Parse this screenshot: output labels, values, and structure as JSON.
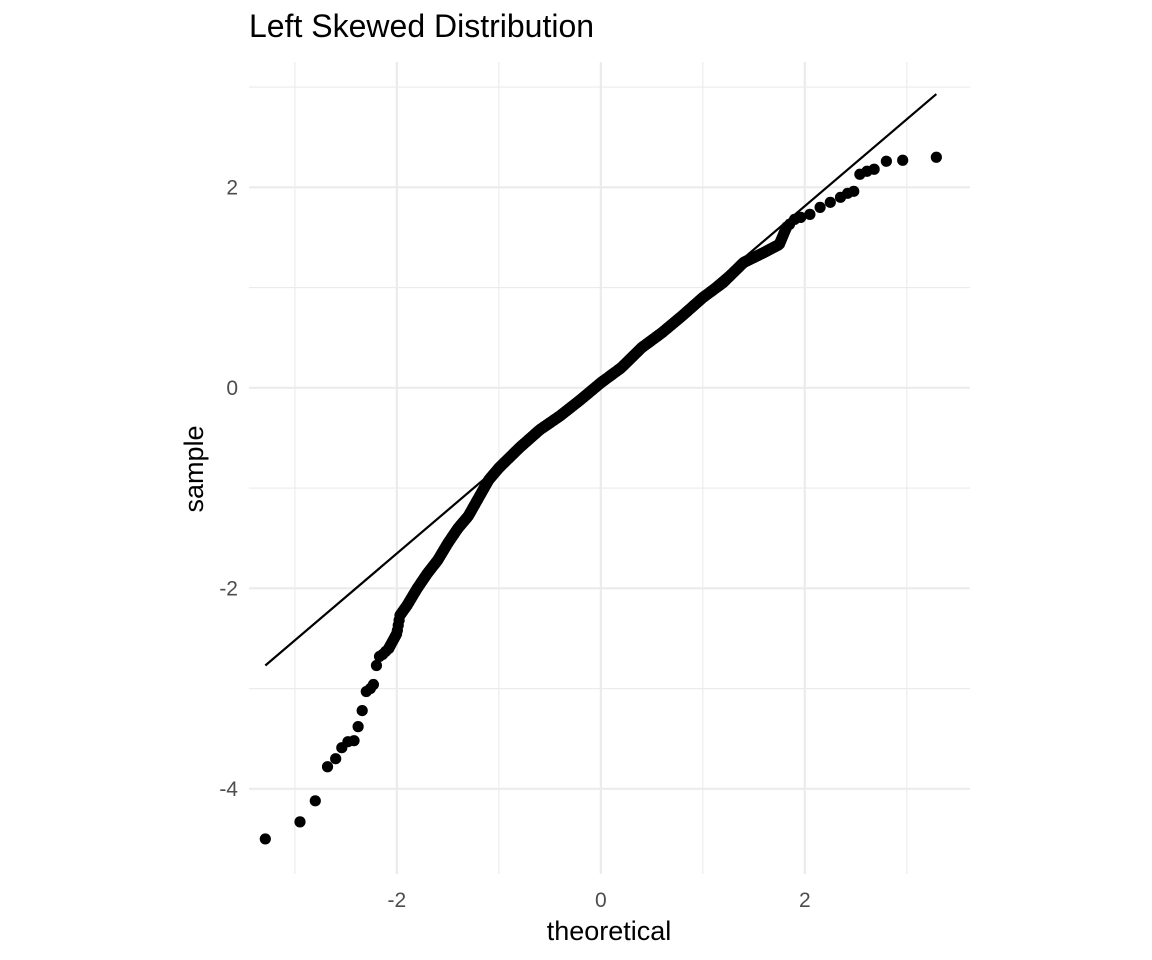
{
  "chart_data": {
    "type": "scatter",
    "title": "Left Skewed Distribution",
    "xlabel": "theoretical",
    "ylabel": "sample",
    "xlim": [
      -3.45,
      3.62
    ],
    "ylim": [
      -4.85,
      3.25
    ],
    "grid": true,
    "x_ticks": [
      -2,
      0,
      2
    ],
    "x_tick_labels": [
      "-2",
      "0",
      "2"
    ],
    "y_ticks": [
      -4,
      -2,
      0,
      2
    ],
    "y_tick_labels": [
      "-4",
      "-2",
      "0",
      "2"
    ],
    "reference_line": {
      "x": [
        -3.29,
        3.29
      ],
      "y": [
        -2.77,
        2.93
      ]
    },
    "point_color": "#000000",
    "line_color": "#000000",
    "grid_color": "#ebebeb",
    "tail_points": [
      [
        -3.29,
        -4.5
      ],
      [
        -2.95,
        -4.33
      ],
      [
        -2.8,
        -4.12
      ],
      [
        -2.68,
        -3.78
      ],
      [
        -2.6,
        -3.7
      ],
      [
        -2.54,
        -3.59
      ],
      [
        -2.48,
        -3.53
      ],
      [
        -2.42,
        -3.52
      ],
      [
        -2.38,
        -3.38
      ],
      [
        -2.34,
        -3.22
      ],
      [
        -2.3,
        -3.03
      ],
      [
        -2.26,
        -3.0
      ],
      [
        -2.23,
        -2.96
      ],
      [
        -2.2,
        -2.77
      ],
      [
        -2.17,
        -2.68
      ],
      [
        -2.14,
        -2.66
      ],
      [
        -2.11,
        -2.63
      ],
      [
        -2.08,
        -2.6
      ],
      [
        1.82,
        1.6
      ],
      [
        1.85,
        1.63
      ],
      [
        1.9,
        1.68
      ],
      [
        1.96,
        1.7
      ],
      [
        2.05,
        1.73
      ],
      [
        2.15,
        1.8
      ],
      [
        2.25,
        1.85
      ],
      [
        2.35,
        1.9
      ],
      [
        2.42,
        1.94
      ],
      [
        2.48,
        1.96
      ],
      [
        2.54,
        2.13
      ],
      [
        2.61,
        2.16
      ],
      [
        2.68,
        2.18
      ],
      [
        2.8,
        2.26
      ],
      [
        2.96,
        2.27
      ],
      [
        3.29,
        2.3
      ]
    ],
    "body_knots": [
      [
        -2.08,
        -2.6
      ],
      [
        -2.0,
        -2.45
      ],
      [
        -1.97,
        -2.27
      ],
      [
        -1.9,
        -2.17
      ],
      [
        -1.8,
        -2.0
      ],
      [
        -1.7,
        -1.85
      ],
      [
        -1.6,
        -1.72
      ],
      [
        -1.5,
        -1.55
      ],
      [
        -1.4,
        -1.4
      ],
      [
        -1.3,
        -1.28
      ],
      [
        -1.2,
        -1.1
      ],
      [
        -1.1,
        -0.92
      ],
      [
        -1.0,
        -0.8
      ],
      [
        -0.8,
        -0.6
      ],
      [
        -0.6,
        -0.42
      ],
      [
        -0.4,
        -0.28
      ],
      [
        -0.2,
        -0.12
      ],
      [
        0.0,
        0.05
      ],
      [
        0.2,
        0.2
      ],
      [
        0.4,
        0.4
      ],
      [
        0.6,
        0.55
      ],
      [
        0.8,
        0.72
      ],
      [
        1.0,
        0.9
      ],
      [
        1.2,
        1.05
      ],
      [
        1.4,
        1.25
      ],
      [
        1.6,
        1.35
      ],
      [
        1.75,
        1.43
      ],
      [
        1.82,
        1.6
      ]
    ],
    "body_point_count": 460
  }
}
